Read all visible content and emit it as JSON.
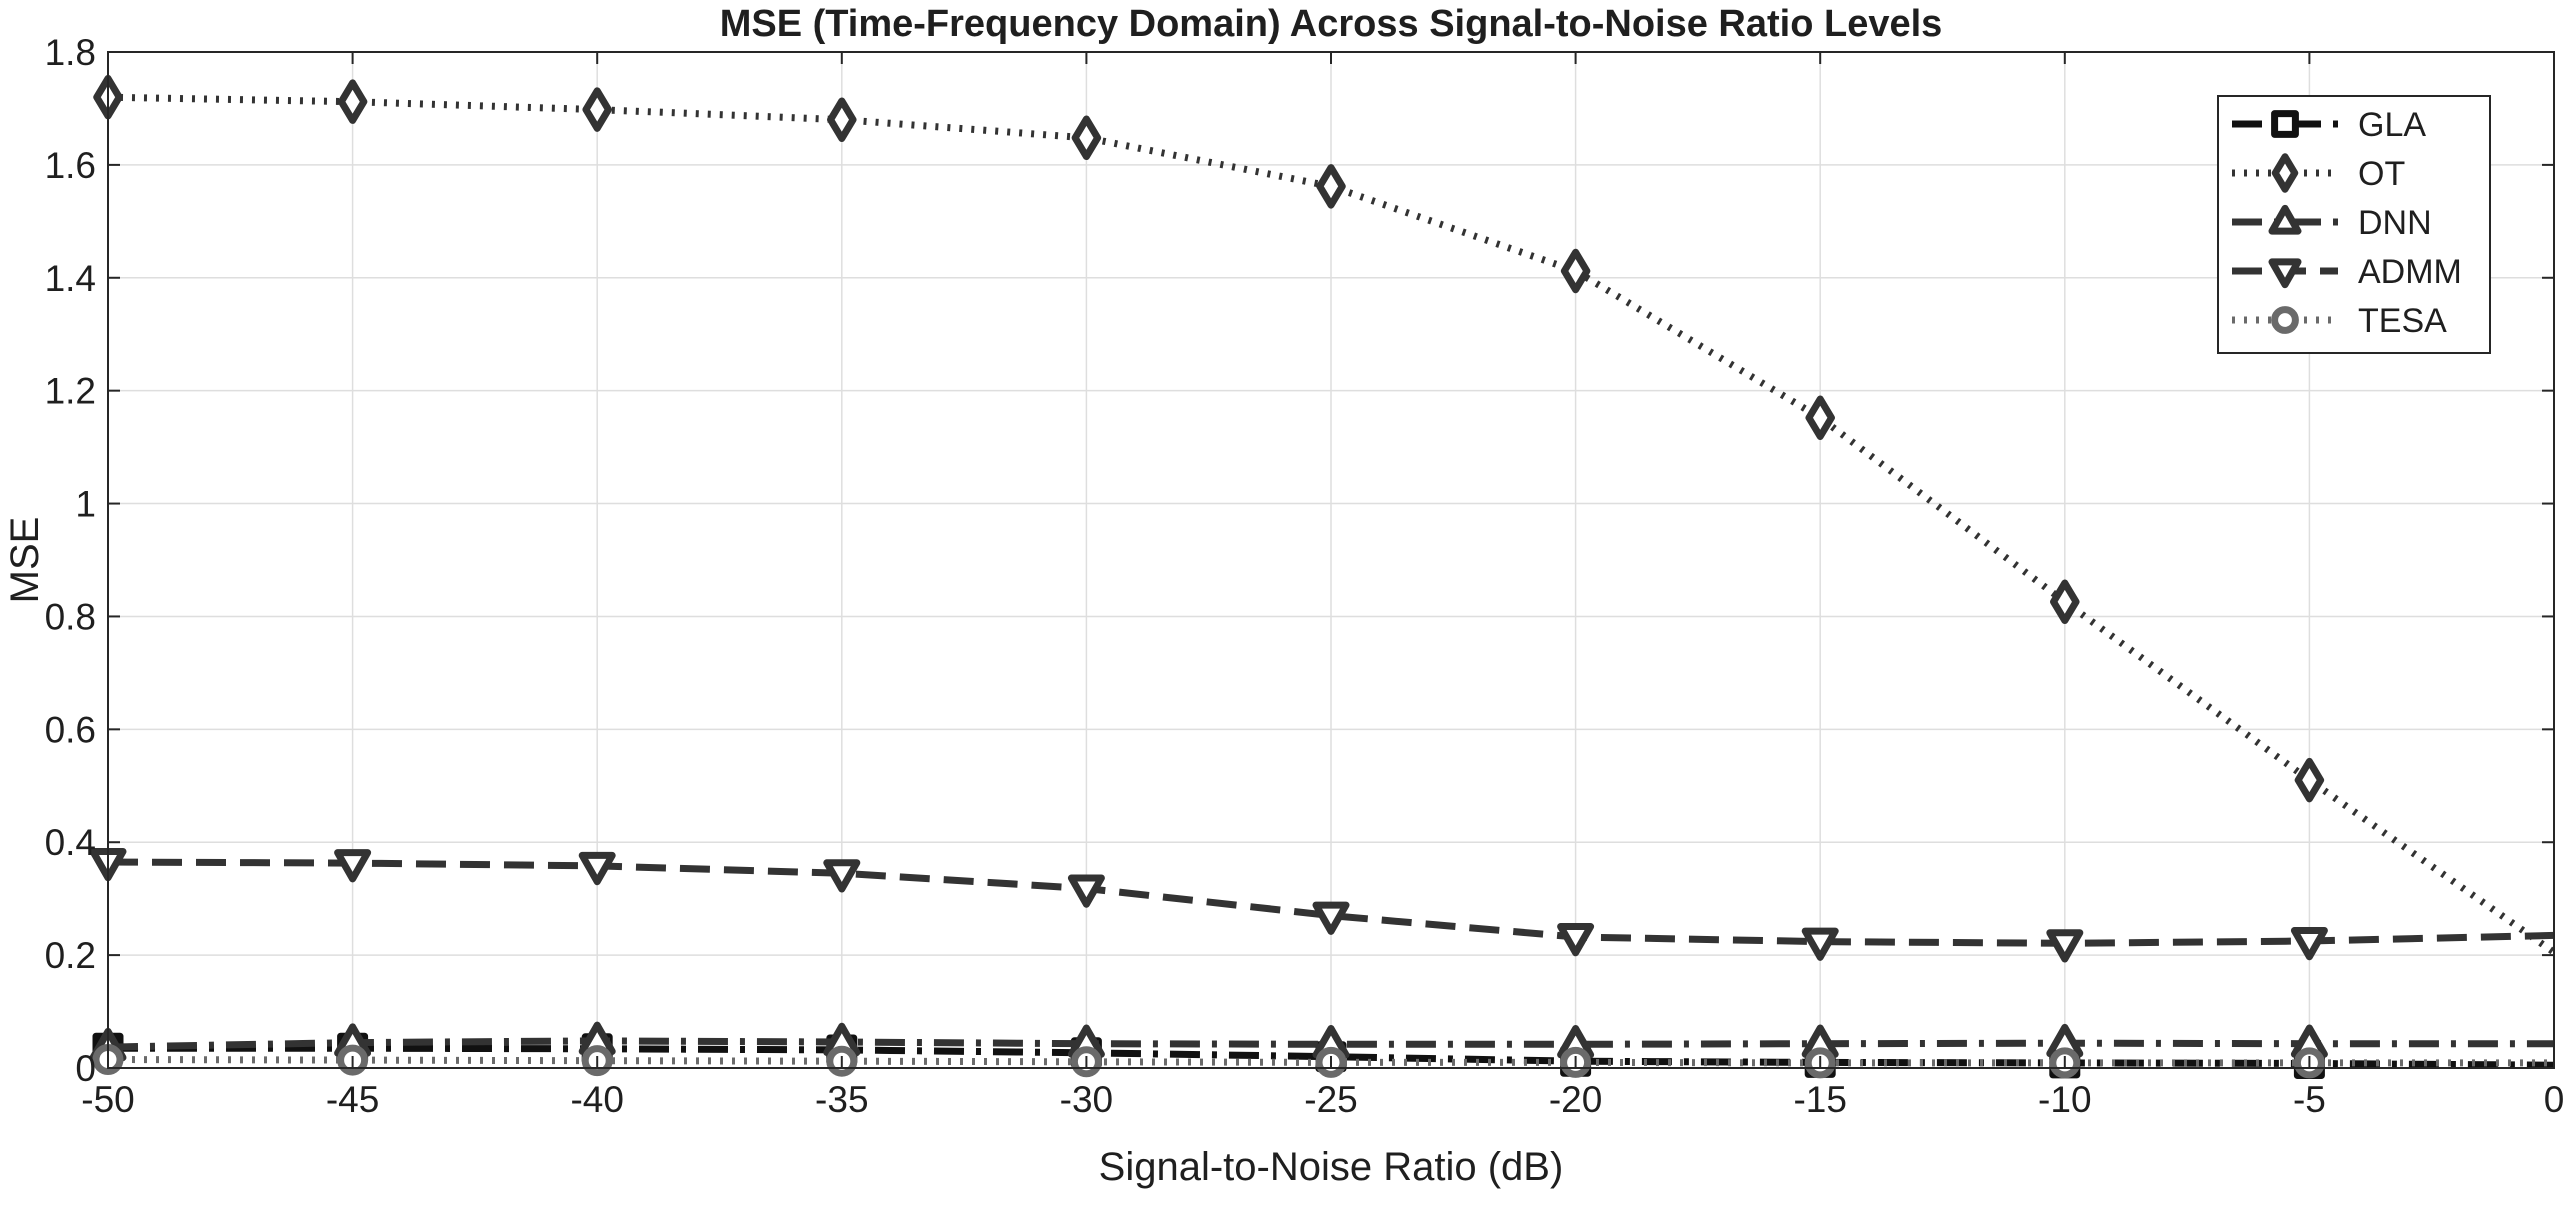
{
  "chart_data": {
    "type": "line",
    "title": "MSE (Time-Frequency Domain) Across Signal-to-Noise Ratio Levels",
    "xlabel": "Signal-to-Noise Ratio (dB)",
    "ylabel": "MSE",
    "xlim": [
      -50,
      0
    ],
    "ylim": [
      0,
      1.8
    ],
    "xticks": [
      -50,
      -45,
      -40,
      -35,
      -30,
      -25,
      -20,
      -15,
      -10,
      -5,
      0
    ],
    "yticks": [
      0,
      0.2,
      0.4,
      0.6,
      0.8,
      1,
      1.2,
      1.4,
      1.6,
      1.8
    ],
    "xtick_labels": [
      "-50",
      "-45",
      "-40",
      "-35",
      "-30",
      "-25",
      "-20",
      "-15",
      "-10",
      "-5",
      "0"
    ],
    "ytick_labels": [
      "0",
      "0.2",
      "0.4",
      "0.6",
      "0.8",
      "1",
      "1.2",
      "1.4",
      "1.6",
      "1.8"
    ],
    "grid": true,
    "legend_position": "top-right",
    "marker_x": [
      -50,
      -45,
      -40,
      -35,
      -30,
      -25,
      -20,
      -15,
      -10,
      -5
    ],
    "series": [
      {
        "name": "GLA",
        "marker": "square",
        "line_style": "dash-dot",
        "color": "#111111",
        "x": [
          -50,
          -45,
          -40,
          -35,
          -30,
          -25,
          -20,
          -15,
          -10,
          -5,
          0
        ],
        "y": [
          0.035,
          0.035,
          0.034,
          0.032,
          0.027,
          0.02,
          0.012,
          0.01,
          0.009,
          0.008,
          0.005
        ]
      },
      {
        "name": "OT",
        "marker": "diamond",
        "line_style": "dotted",
        "color": "#333333",
        "x": [
          -50,
          -45,
          -40,
          -35,
          -30,
          -25,
          -20,
          -15,
          -10,
          -5,
          0
        ],
        "y": [
          1.72,
          1.712,
          1.698,
          1.68,
          1.648,
          1.562,
          1.412,
          1.152,
          0.826,
          0.51,
          0.205
        ]
      },
      {
        "name": "DNN",
        "marker": "triangle-up",
        "line_style": "dash-dot",
        "color": "#333333",
        "x": [
          -50,
          -45,
          -40,
          -35,
          -30,
          -25,
          -20,
          -15,
          -10,
          -5,
          0
        ],
        "y": [
          0.037,
          0.045,
          0.048,
          0.046,
          0.043,
          0.042,
          0.042,
          0.043,
          0.044,
          0.043,
          0.043
        ]
      },
      {
        "name": "ADMM",
        "marker": "triangle-down",
        "line_style": "dashed",
        "color": "#333333",
        "x": [
          -50,
          -45,
          -40,
          -35,
          -30,
          -25,
          -20,
          -15,
          -10,
          -5,
          0
        ],
        "y": [
          0.365,
          0.363,
          0.358,
          0.345,
          0.318,
          0.27,
          0.232,
          0.224,
          0.221,
          0.225,
          0.235
        ]
      },
      {
        "name": "TESA",
        "marker": "circle",
        "line_style": "dotted",
        "color": "#6a6a6a",
        "x": [
          -50,
          -45,
          -40,
          -35,
          -30,
          -25,
          -20,
          -15,
          -10,
          -5,
          0
        ],
        "y": [
          0.015,
          0.014,
          0.013,
          0.012,
          0.011,
          0.01,
          0.01,
          0.009,
          0.009,
          0.009,
          0.009
        ]
      }
    ]
  }
}
